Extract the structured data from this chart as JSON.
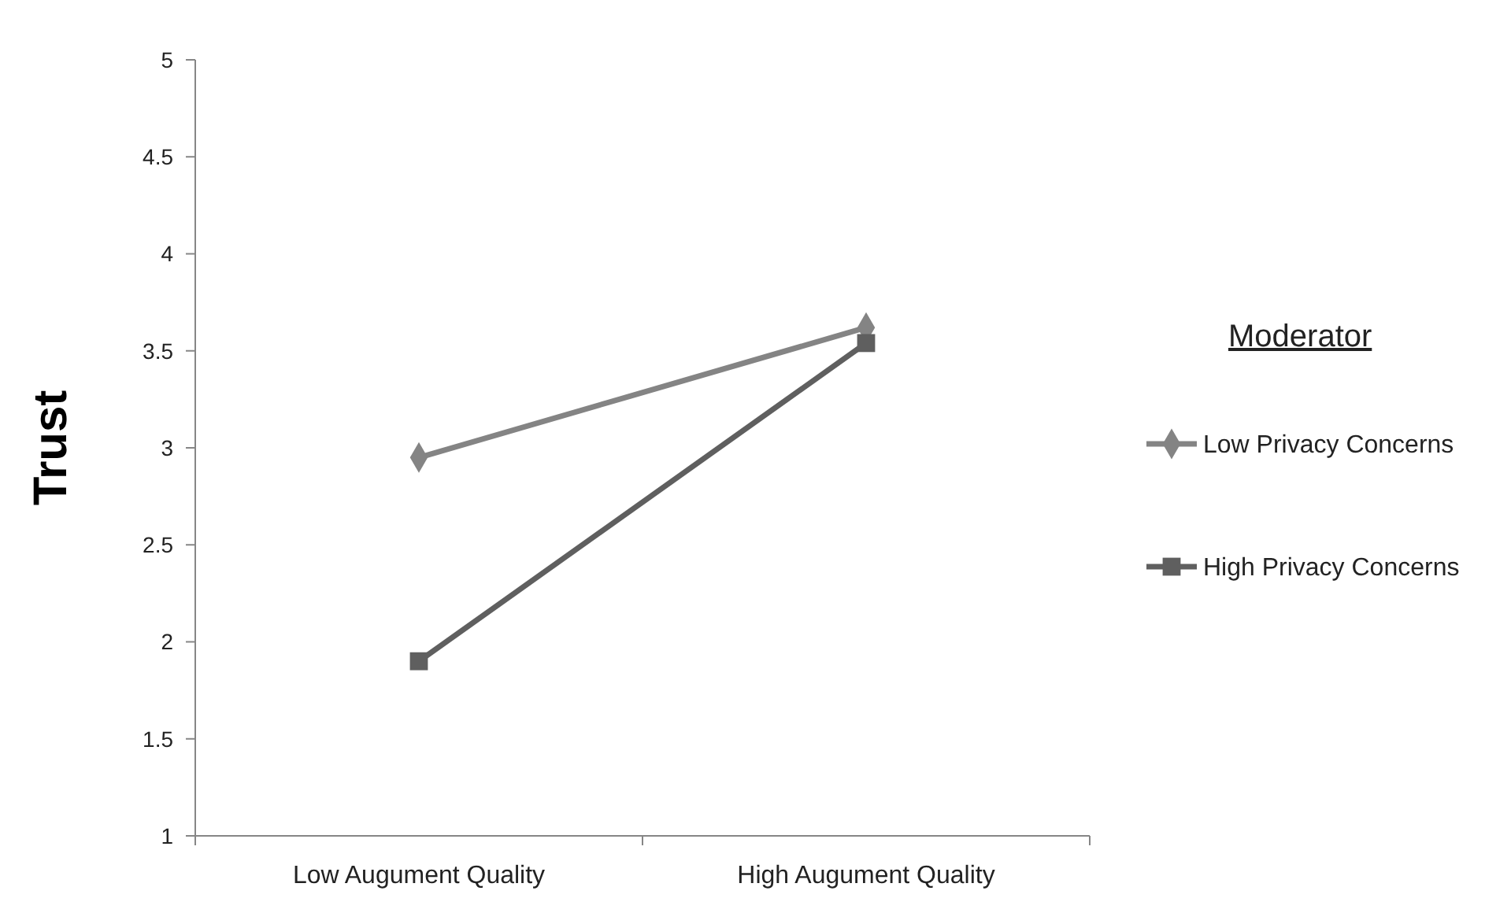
{
  "chart_data": {
    "type": "line",
    "ylabel": "Trust",
    "legend_title": "Moderator",
    "legend": "right",
    "grid": false,
    "categories": [
      "Low Augument Quality",
      "High Augument Quality"
    ],
    "ylim": [
      1,
      5
    ],
    "yticks": [
      1,
      1.5,
      2,
      2.5,
      3,
      3.5,
      4,
      4.5,
      5
    ],
    "series": [
      {
        "name": "Low Privacy Concerns",
        "color": "#848484",
        "marker": "diamond",
        "values": [
          2.95,
          3.62
        ]
      },
      {
        "name": "High Privacy Concerns",
        "color": "#5f5f5f",
        "marker": "square",
        "values": [
          1.9,
          3.54
        ]
      }
    ]
  }
}
